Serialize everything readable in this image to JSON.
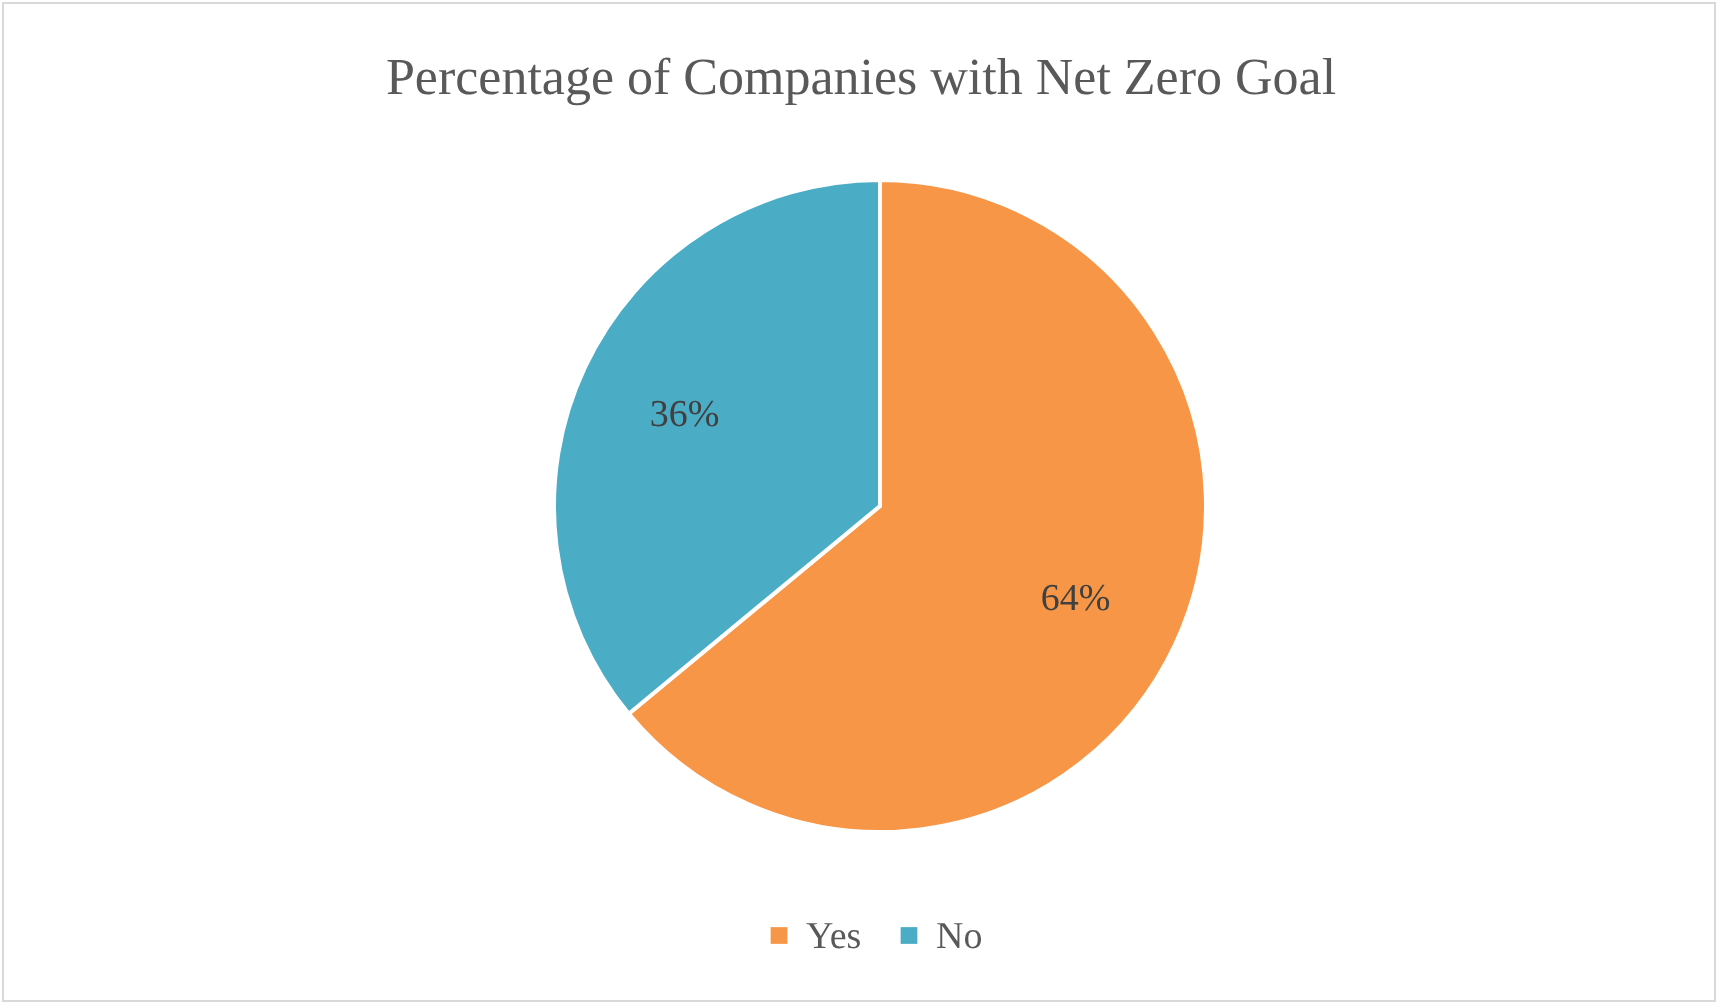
{
  "chart_data": {
    "type": "pie",
    "title": "Percentage of Companies with Net Zero Goal",
    "categories": [
      "Yes",
      "No"
    ],
    "values": [
      64,
      36
    ],
    "value_labels": [
      "64%",
      "36%"
    ],
    "colors": [
      "#f79646",
      "#4bacc6"
    ],
    "legend": "bottom"
  }
}
